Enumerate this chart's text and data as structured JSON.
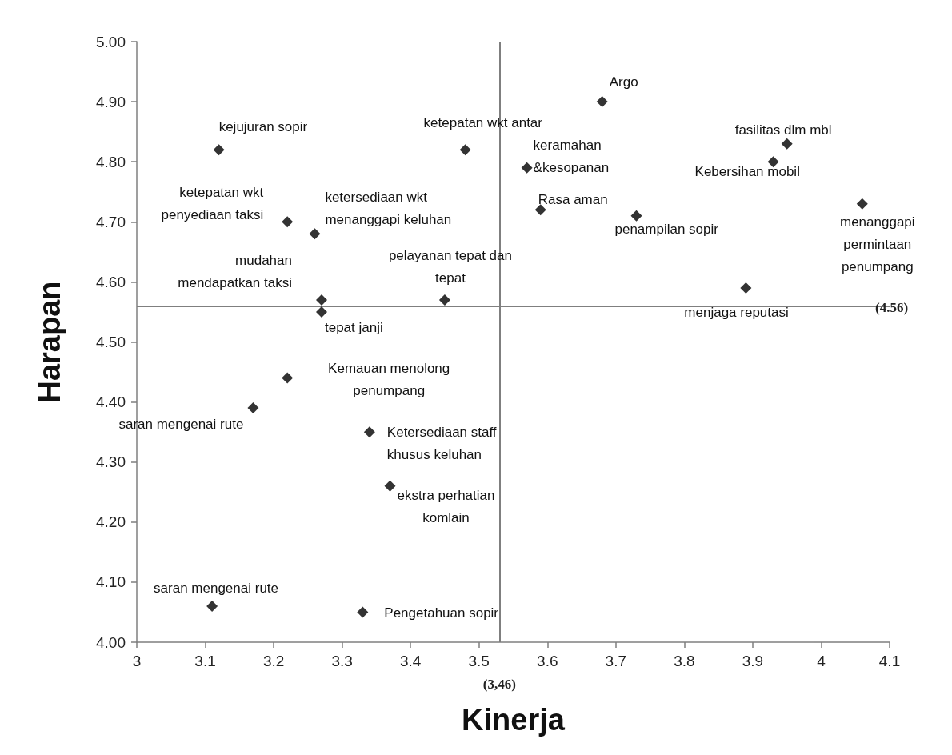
{
  "chart_data": {
    "type": "scatter",
    "xlabel": "Kinerja",
    "ylabel": "Harapan",
    "marker": "diamond",
    "grid": false,
    "xlim": [
      3,
      4.1
    ],
    "xticks": [
      3,
      3.1,
      3.2,
      3.3,
      3.4,
      3.5,
      3.6,
      3.7,
      3.8,
      3.9,
      4,
      4.1
    ],
    "ylim": [
      4,
      5
    ],
    "yticks": [
      {
        "value": 4,
        "label": "4.00"
      },
      {
        "value": 4.1,
        "label": "4.10"
      },
      {
        "value": 4.2,
        "label": "4.20"
      },
      {
        "value": 4.3,
        "label": "4.30"
      },
      {
        "value": 4.4,
        "label": "4.40"
      },
      {
        "value": 4.5,
        "label": "4.50"
      },
      {
        "value": 4.6,
        "label": "4.60"
      },
      {
        "value": 4.7,
        "label": "4.70"
      },
      {
        "value": 4.8,
        "label": "4.80"
      },
      {
        "value": 4.9,
        "label": "4.90"
      },
      {
        "value": 5,
        "label": "5.00"
      }
    ],
    "series": [
      {
        "color": "#000000",
        "x": [
          3.12,
          3.48,
          3.57,
          3.68,
          3.95,
          3.93,
          3.22,
          3.26,
          3.59,
          3.73,
          4.06,
          3.27,
          3.27,
          3.45,
          3.89,
          3.22,
          3.17,
          3.34,
          3.37,
          3.11,
          3.33
        ],
        "values": [
          4.82,
          4.82,
          4.79,
          4.9,
          4.83,
          4.8,
          4.7,
          4.68,
          4.72,
          4.71,
          4.73,
          4.57,
          4.55,
          4.57,
          4.59,
          4.44,
          4.39,
          4.35,
          4.26,
          4.06,
          4.05
        ]
      }
    ],
    "ref_lines": [
      {
        "axis": "x",
        "value": 3.53,
        "color": "#7f7f7f"
      },
      {
        "axis": "y",
        "value": 4.56,
        "label": "(4.56)",
        "color": "#7f7f7f"
      }
    ],
    "annotations": [
      {
        "text": "kejujuran sopir",
        "x": 3.12,
        "y": 4.82
      },
      {
        "text": "ketepatan wkt antar",
        "x": 3.48,
        "y": 4.82
      },
      {
        "text": "keramahan\n&kesopanan",
        "x": 3.57,
        "y": 4.79
      },
      {
        "text": "Argo",
        "x": 3.68,
        "y": 4.9
      },
      {
        "text": "fasilitas dlm mbl",
        "x": 3.95,
        "y": 4.83
      },
      {
        "text": "Kebersihan mobil",
        "x": 3.93,
        "y": 4.8
      },
      {
        "text": "ketepatan wkt\npenyediaan taksi",
        "x": 3.22,
        "y": 4.7
      },
      {
        "text": "ketersediaan wkt\nmenanggapi keluhan",
        "x": 3.26,
        "y": 4.68
      },
      {
        "text": "Rasa aman",
        "x": 3.59,
        "y": 4.72
      },
      {
        "text": "penampilan sopir",
        "x": 3.73,
        "y": 4.71
      },
      {
        "text": "menanggapi\npermintaan\npenumpang",
        "x": 4.06,
        "y": 4.73
      },
      {
        "text": "mudahan\nmendapatkan taksi",
        "x": 3.27,
        "y": 4.57
      },
      {
        "text": "tepat janji",
        "x": 3.27,
        "y": 4.55
      },
      {
        "text": "pelayanan tepat dan\ntepat",
        "x": 3.45,
        "y": 4.57
      },
      {
        "text": "menjaga reputasi",
        "x": 3.89,
        "y": 4.59
      },
      {
        "text": "Kemauan menolong\npenumpang",
        "x": 3.22,
        "y": 4.44
      },
      {
        "text": "saran mengenai rute",
        "x": 3.17,
        "y": 4.39
      },
      {
        "text": "Ketersediaan staff\nkhusus keluhan",
        "x": 3.34,
        "y": 4.35
      },
      {
        "text": "ekstra perhatian\nkomlain",
        "x": 3.37,
        "y": 4.26
      },
      {
        "text": "saran mengenai rute",
        "x": 3.11,
        "y": 4.06
      },
      {
        "text": "Pengetahuan sopir",
        "x": 3.33,
        "y": 4.05
      },
      "(3,46)"
    ]
  }
}
